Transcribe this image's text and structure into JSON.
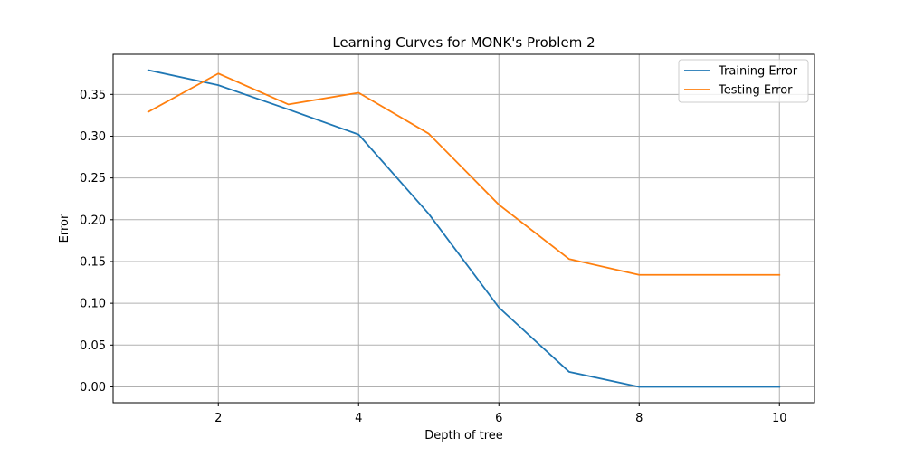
{
  "chart_data": {
    "type": "line",
    "title": "Learning Curves for MONK's Problem 2",
    "xlabel": "Depth of tree",
    "ylabel": "Error",
    "x": [
      1,
      2,
      3,
      4,
      5,
      6,
      7,
      8,
      9,
      10
    ],
    "xlim": [
      0.5,
      10.5
    ],
    "ylim": [
      -0.019,
      0.398
    ],
    "xticks": [
      2,
      4,
      6,
      8,
      10
    ],
    "xtick_labels": [
      "2",
      "4",
      "6",
      "8",
      "10"
    ],
    "yticks": [
      0.0,
      0.05,
      0.1,
      0.15,
      0.2,
      0.25,
      0.3,
      0.35
    ],
    "ytick_labels": [
      "0.00",
      "0.05",
      "0.10",
      "0.15",
      "0.20",
      "0.25",
      "0.30",
      "0.35"
    ],
    "grid": true,
    "legend_position": "top-right",
    "series": [
      {
        "name": "Training Error",
        "color": "#1f77b4",
        "values": [
          0.379,
          0.361,
          0.332,
          0.302,
          0.207,
          0.095,
          0.018,
          0.0,
          0.0,
          0.0
        ]
      },
      {
        "name": "Testing Error",
        "color": "#ff7f0e",
        "values": [
          0.329,
          0.375,
          0.338,
          0.352,
          0.303,
          0.218,
          0.153,
          0.134,
          0.134,
          0.134
        ]
      }
    ]
  }
}
